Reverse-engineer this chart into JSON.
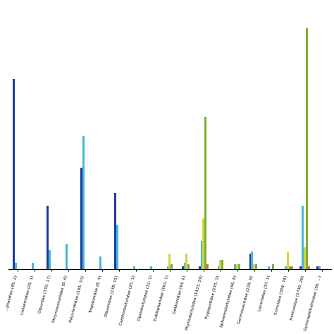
{
  "categories": [
    "...phalidae (45, 2)",
    "Liolaemidae (29, 1)",
    "Olpurdae (332, 17)",
    "Phrynosomatidae (8, 6)",
    "Polychrotidae (165, 57)",
    "Tropidunidae (8, 4)",
    "Dibamidae (138, 15)",
    "Carphodactylidae (25, 1)",
    "Diplodactylidae (32, 1)",
    "Eublepharidae (161, 1)",
    "Gekkonidae (44, 2)",
    "Phyllodactylidae (1433, 29)",
    "Pygopodidae (155, 3)",
    "Sphaerodactylidae (46, 6)",
    "Germosauridae (229, 9)",
    "Lacertidae (37, 1)",
    "Scincidae (358, 78)",
    "Xantusidae (1730, 29)",
    "Gymnophthalmidae (36, ...)"
  ],
  "bar_colors": [
    "#1a3a9e",
    "#44b8d4",
    "#d4d440",
    "#7ab030",
    "#d47820"
  ],
  "bar_groups": [
    [
      0.3,
      0.01,
      0,
      0,
      0
    ],
    [
      0,
      0.01,
      0,
      0,
      0
    ],
    [
      0.1,
      0.03,
      0,
      0,
      0
    ],
    [
      0,
      0.04,
      0,
      0,
      0
    ],
    [
      0.16,
      0.21,
      0,
      0,
      0
    ],
    [
      0,
      0.02,
      0,
      0,
      0
    ],
    [
      0.12,
      0.07,
      0,
      0,
      0
    ],
    [
      0,
      0.005,
      0,
      0,
      0
    ],
    [
      0,
      0.005,
      0,
      0,
      0
    ],
    [
      0,
      0.005,
      0.025,
      0.008,
      0
    ],
    [
      0.005,
      0.01,
      0.025,
      0.008,
      0
    ],
    [
      0.005,
      0.045,
      0.08,
      0.24,
      0.008
    ],
    [
      0,
      0.005,
      0.015,
      0.015,
      0
    ],
    [
      0,
      0.008,
      0.008,
      0.008,
      0
    ],
    [
      0.025,
      0.028,
      0.008,
      0.008,
      0
    ],
    [
      0,
      0.005,
      0,
      0.008,
      0
    ],
    [
      0,
      0.005,
      0.028,
      0.005,
      0.005
    ],
    [
      0.005,
      0.1,
      0.035,
      0.38,
      0.005
    ],
    [
      0.005,
      0.005,
      0,
      0,
      0
    ]
  ],
  "figsize": [
    4.74,
    4.74
  ],
  "dpi": 100,
  "ylim": [
    0,
    0.42
  ],
  "bar_width": 0.12
}
